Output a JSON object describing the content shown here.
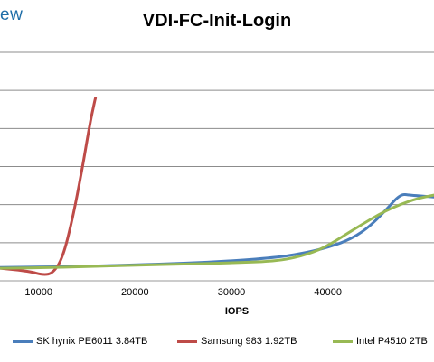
{
  "brand": {
    "text": "ew"
  },
  "chart_data": {
    "type": "line",
    "title": "VDI-FC-Init-Login",
    "xlabel": "IOPS",
    "ylabel": "",
    "xlim": [
      6000,
      51000
    ],
    "ylim": [
      0,
      6
    ],
    "grid": true,
    "legend_position": "bottom",
    "x_ticks": [
      "10000",
      "20000",
      "30000",
      "40000"
    ],
    "series": [
      {
        "name": "SK hynix PE6011 3.84TB",
        "color": "#4a7ebb",
        "points": [
          [
            6000,
            0.35
          ],
          [
            10000,
            0.36
          ],
          [
            15000,
            0.38
          ],
          [
            20000,
            0.42
          ],
          [
            25000,
            0.46
          ],
          [
            30000,
            0.52
          ],
          [
            35000,
            0.62
          ],
          [
            38000,
            0.75
          ],
          [
            40000,
            0.88
          ],
          [
            42000,
            1.05
          ],
          [
            44000,
            1.35
          ],
          [
            46000,
            1.85
          ],
          [
            47500,
            2.28
          ],
          [
            48500,
            2.25
          ],
          [
            51000,
            2.2
          ]
        ]
      },
      {
        "name": "Samsung 983 1.92TB",
        "color": "#be4b48",
        "points": [
          [
            6000,
            0.33
          ],
          [
            9000,
            0.25
          ],
          [
            10500,
            0.15
          ],
          [
            11500,
            0.2
          ],
          [
            12500,
            0.6
          ],
          [
            13500,
            1.6
          ],
          [
            14500,
            2.9
          ],
          [
            15300,
            4.1
          ],
          [
            15800,
            4.7
          ],
          [
            15900,
            4.8
          ]
        ]
      },
      {
        "name": "Intel P4510 2TB",
        "color": "#98b954",
        "points": [
          [
            6000,
            0.33
          ],
          [
            10000,
            0.34
          ],
          [
            15000,
            0.37
          ],
          [
            20000,
            0.41
          ],
          [
            25000,
            0.44
          ],
          [
            30000,
            0.47
          ],
          [
            35000,
            0.52
          ],
          [
            38000,
            0.7
          ],
          [
            40000,
            0.92
          ],
          [
            43000,
            1.4
          ],
          [
            46000,
            1.85
          ],
          [
            49000,
            2.15
          ],
          [
            51000,
            2.25
          ]
        ]
      }
    ]
  }
}
